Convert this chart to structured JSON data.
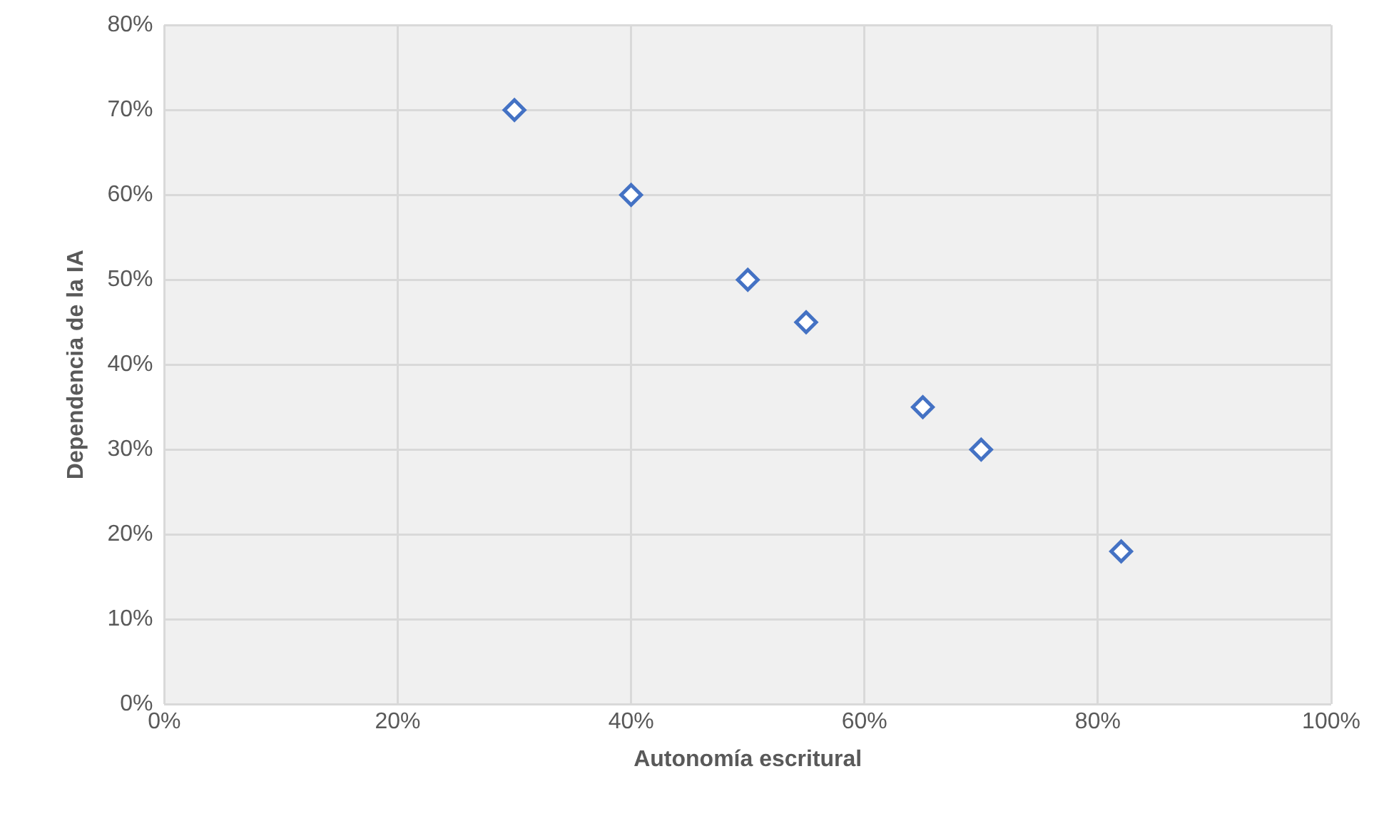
{
  "chart_data": {
    "type": "scatter",
    "xlabel": "Autonomía escritural",
    "ylabel": "Dependencia de la IA",
    "x": [
      30,
      40,
      50,
      55,
      65,
      70,
      82
    ],
    "values": [
      70,
      60,
      50,
      45,
      35,
      30,
      18
    ],
    "color": "#4472c4",
    "marker": "diamond",
    "grid": true,
    "legend": false,
    "xlim": [
      0,
      100
    ],
    "xticks": [
      {
        "value": 0,
        "label": "0%"
      },
      {
        "value": 20,
        "label": "20%"
      },
      {
        "value": 40,
        "label": "40%"
      },
      {
        "value": 60,
        "label": "60%"
      },
      {
        "value": 80,
        "label": "80%"
      },
      {
        "value": 100,
        "label": "100%"
      }
    ],
    "ylim": [
      0,
      80
    ],
    "yticks": [
      {
        "value": 0,
        "label": "0%"
      },
      {
        "value": 10,
        "label": "10%"
      },
      {
        "value": 20,
        "label": "20%"
      },
      {
        "value": 30,
        "label": "30%"
      },
      {
        "value": 40,
        "label": "40%"
      },
      {
        "value": 50,
        "label": "50%"
      },
      {
        "value": 60,
        "label": "60%"
      },
      {
        "value": 70,
        "label": "70%"
      },
      {
        "value": 80,
        "label": "80%"
      }
    ]
  }
}
